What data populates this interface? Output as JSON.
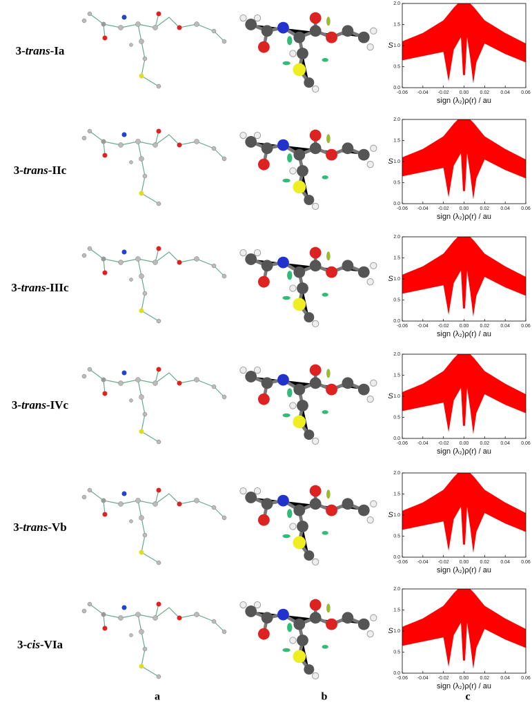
{
  "columns": [
    "a",
    "b",
    "c"
  ],
  "rows": [
    {
      "label": {
        "prefix": "3-",
        "italic": "trans",
        "suffix": "-Ia"
      }
    },
    {
      "label": {
        "prefix": "3-",
        "italic": "trans",
        "suffix": "-IIc"
      }
    },
    {
      "label": {
        "prefix": "3-",
        "italic": "trans",
        "suffix": "-IIIc"
      }
    },
    {
      "label": {
        "prefix": "3-",
        "italic": "trans",
        "suffix": "-IVc"
      }
    },
    {
      "label": {
        "prefix": "3-",
        "italic": "trans",
        "suffix": "-Vb"
      }
    },
    {
      "label": {
        "prefix": "3-",
        "italic": "cis",
        "suffix": "-VIa"
      }
    }
  ],
  "plot": {
    "xlabel": "sign (λ₂)ρ(r) / au",
    "ylabel": "S",
    "color": "#ff0000",
    "xlim": [
      -0.06,
      0.06
    ],
    "ylim": [
      0,
      2
    ],
    "xticks": [
      -0.06,
      -0.04,
      -0.02,
      {
        "value": 0,
        "label": "0.00"
      },
      0.02,
      0.04,
      0.06
    ],
    "yticks": [
      {
        "value": 0,
        "label": "0.0"
      },
      0.5,
      {
        "value": 1,
        "label": "1.0"
      },
      1.5,
      {
        "value": 2,
        "label": "2.0"
      }
    ]
  }
}
